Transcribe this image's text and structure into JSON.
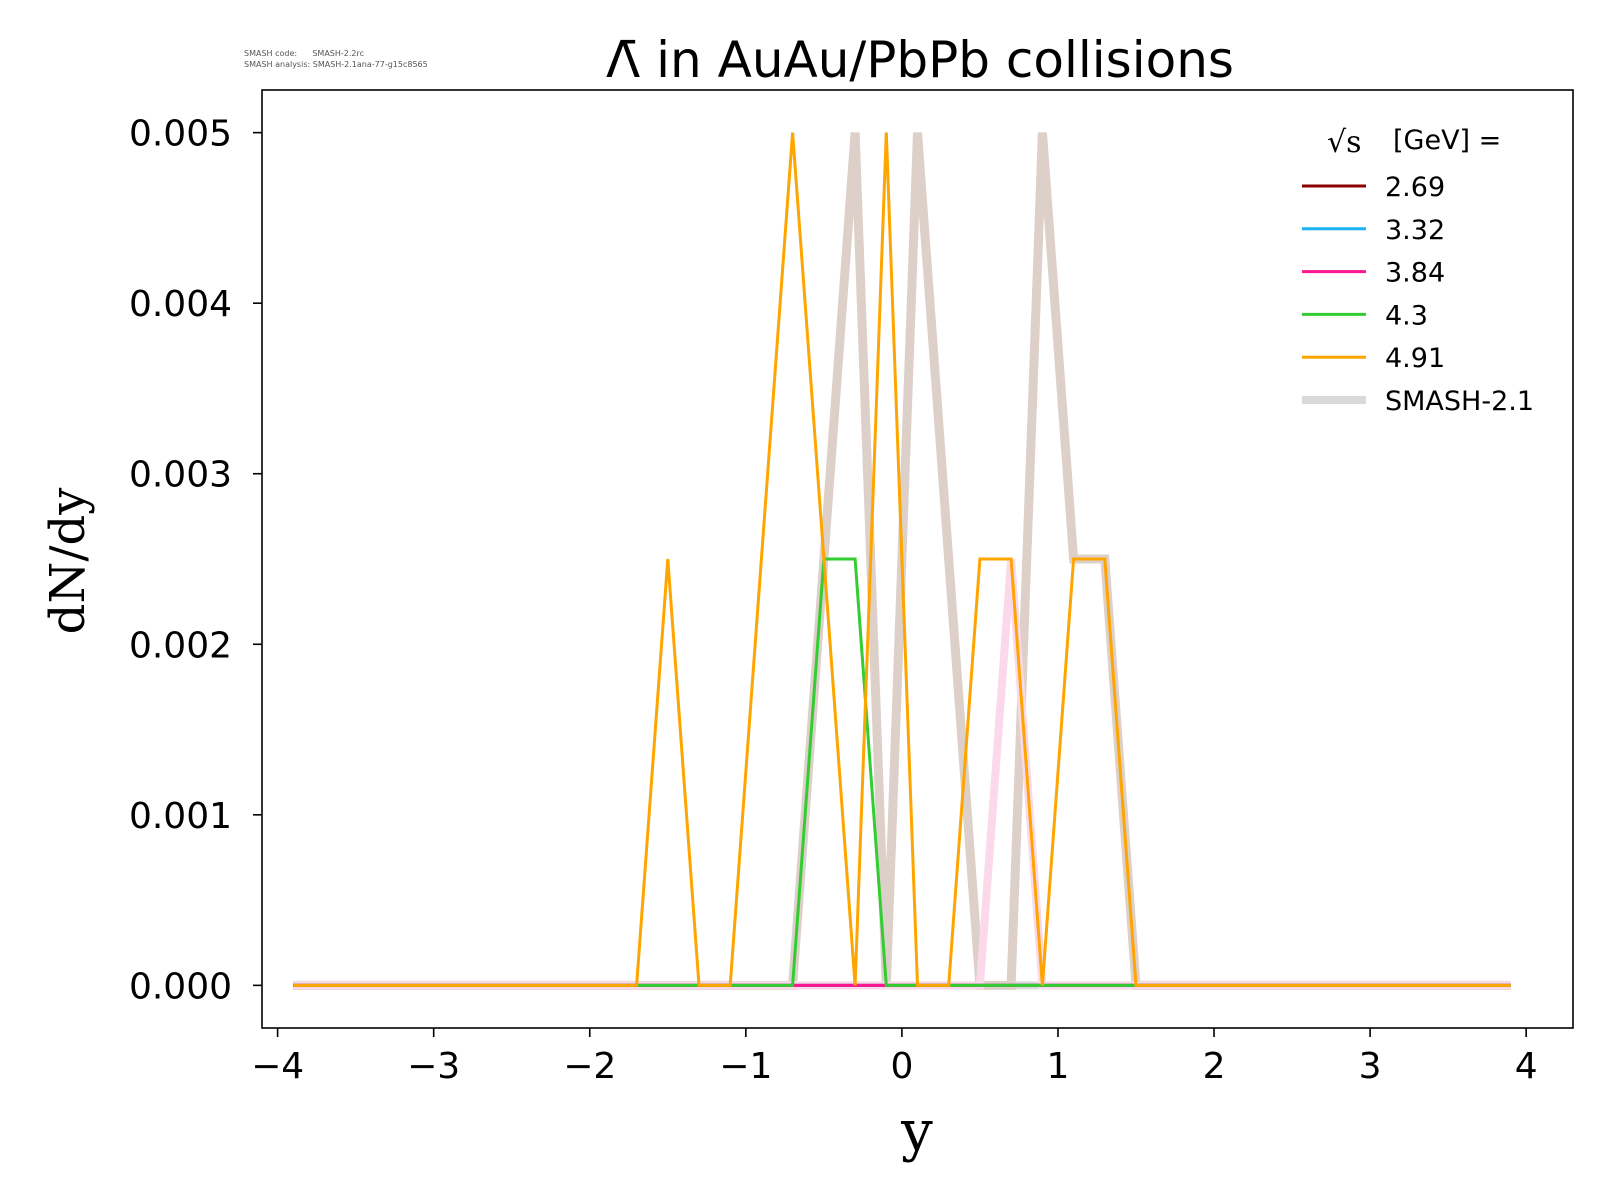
{
  "meta": {
    "code_label": "SMASH code:",
    "code_value": "SMASH-2.2rc",
    "analysis_label": "SMASH analysis:",
    "analysis_value": "SMASH-2.1ana-77-g15c8565"
  },
  "chart_data": {
    "type": "line",
    "title": "Λ̄ in AuAu/PbPb collisions",
    "xlabel": "y",
    "ylabel": "dN/dy",
    "xlim": [
      -4.1,
      4.3
    ],
    "ylim": [
      -0.00025,
      0.00525
    ],
    "xticks": [
      -4,
      -3,
      -2,
      -1,
      0,
      1,
      2,
      3,
      4
    ],
    "xtick_labels": [
      "−4",
      "−3",
      "−2",
      "−1",
      "0",
      "1",
      "2",
      "3",
      "4"
    ],
    "yticks": [
      0.0,
      0.001,
      0.002,
      0.003,
      0.004,
      0.005
    ],
    "ytick_labels": [
      "0.000",
      "0.001",
      "0.002",
      "0.003",
      "0.004",
      "0.005"
    ],
    "grid": false,
    "legend": {
      "placement": "top-right",
      "title_sqrt": "√s",
      "title_rest": "[GeV] ="
    },
    "x": [
      -3.9,
      -3.7,
      -3.5,
      -3.3,
      -3.1,
      -2.9,
      -2.7,
      -2.5,
      -2.3,
      -2.1,
      -1.9,
      -1.7,
      -1.5,
      -1.3,
      -1.1,
      -0.9,
      -0.7,
      -0.5,
      -0.3,
      -0.1,
      0.1,
      0.3,
      0.5,
      0.7,
      0.9,
      1.1,
      1.3,
      1.5,
      1.7,
      1.9,
      2.1,
      2.3,
      2.5,
      2.7,
      2.9,
      3.1,
      3.3,
      3.5,
      3.7,
      3.9
    ],
    "series": [
      {
        "name": "SMASH-2.1",
        "color": "#d9d9d9",
        "width": 8,
        "values": [
          0,
          0,
          0,
          0,
          0,
          0,
          0,
          0,
          0,
          0,
          0,
          0,
          0,
          0,
          0,
          0,
          0,
          0,
          0,
          0,
          0,
          0,
          0,
          0,
          0,
          0,
          0,
          0,
          0,
          0,
          0,
          0,
          0,
          0,
          0,
          0,
          0,
          0,
          0,
          0
        ]
      },
      {
        "name": "SMASH-2.1",
        "color": "#dcd0c8",
        "width": 9,
        "values": [
          0,
          0,
          0,
          0,
          0,
          0,
          0,
          0,
          0,
          0,
          0,
          0,
          0,
          0,
          0,
          0,
          0,
          0.0025,
          0.005,
          0,
          0.005,
          0.0025,
          0,
          0,
          0.005,
          0.0025,
          0.0025,
          0,
          0,
          0,
          0,
          0,
          0,
          0,
          0,
          0,
          0,
          0,
          0,
          0
        ]
      },
      {
        "name": "SMASH-2.1",
        "color": "#fbd9ea",
        "width": 8,
        "values": [
          0,
          0,
          0,
          0,
          0,
          0,
          0,
          0,
          0,
          0,
          0,
          0,
          0,
          0,
          0,
          0,
          0,
          0,
          0,
          0,
          0,
          0,
          0,
          0.0025,
          0,
          0,
          0,
          0,
          0,
          0,
          0,
          0,
          0,
          0,
          0,
          0,
          0,
          0,
          0,
          0
        ]
      },
      {
        "name": "2.69",
        "color": "#8b0000",
        "width": 3,
        "values": [
          0,
          0,
          0,
          0,
          0,
          0,
          0,
          0,
          0,
          0,
          0,
          0,
          0,
          0,
          0,
          0,
          0,
          0,
          0,
          0,
          0,
          0,
          0,
          0,
          0,
          0,
          0,
          0,
          0,
          0,
          0,
          0,
          0,
          0,
          0,
          0,
          0,
          0,
          0,
          0
        ]
      },
      {
        "name": "3.32",
        "color": "#1ab2f0",
        "width": 3,
        "values": [
          0,
          0,
          0,
          0,
          0,
          0,
          0,
          0,
          0,
          0,
          0,
          0,
          0,
          0,
          0,
          0,
          0,
          0,
          0,
          0,
          0,
          0,
          0,
          0,
          0,
          0,
          0,
          0,
          0,
          0,
          0,
          0,
          0,
          0,
          0,
          0,
          0,
          0,
          0,
          0
        ]
      },
      {
        "name": "3.84",
        "color": "#ff1493",
        "width": 3,
        "values": [
          0,
          0,
          0,
          0,
          0,
          0,
          0,
          0,
          0,
          0,
          0,
          0,
          0,
          0,
          0,
          0,
          0,
          0,
          0,
          0,
          0,
          0,
          0,
          0,
          0,
          0,
          0,
          0,
          0,
          0,
          0,
          0,
          0,
          0,
          0,
          0,
          0,
          0,
          0,
          0
        ]
      },
      {
        "name": "4.3",
        "color": "#32cd32",
        "width": 3,
        "values": [
          0,
          0,
          0,
          0,
          0,
          0,
          0,
          0,
          0,
          0,
          0,
          0,
          0,
          0,
          0,
          0,
          0,
          0.0025,
          0.0025,
          0,
          0,
          0,
          0,
          0,
          0,
          0,
          0,
          0,
          0,
          0,
          0,
          0,
          0,
          0,
          0,
          0,
          0,
          0,
          0,
          0
        ]
      },
      {
        "name": "4.91",
        "color": "#ffa500",
        "width": 3,
        "values": [
          0,
          0,
          0,
          0,
          0,
          0,
          0,
          0,
          0,
          0,
          0,
          0,
          0.0025,
          0,
          0,
          0.0025,
          0.005,
          0.0025,
          0,
          0.005,
          0,
          0,
          0.0025,
          0.0025,
          0,
          0.0025,
          0.0025,
          0,
          0,
          0,
          0,
          0,
          0,
          0,
          0,
          0,
          0,
          0,
          0,
          0
        ]
      }
    ],
    "legend_entries": [
      {
        "label": "2.69",
        "color": "#8b0000",
        "width": 3
      },
      {
        "label": "3.32",
        "color": "#1ab2f0",
        "width": 3
      },
      {
        "label": "3.84",
        "color": "#ff1493",
        "width": 3
      },
      {
        "label": "4.3",
        "color": "#32cd32",
        "width": 3
      },
      {
        "label": "4.91",
        "color": "#ffa500",
        "width": 3
      },
      {
        "label": "SMASH-2.1",
        "color": "#d9d9d9",
        "width": 8
      }
    ]
  }
}
